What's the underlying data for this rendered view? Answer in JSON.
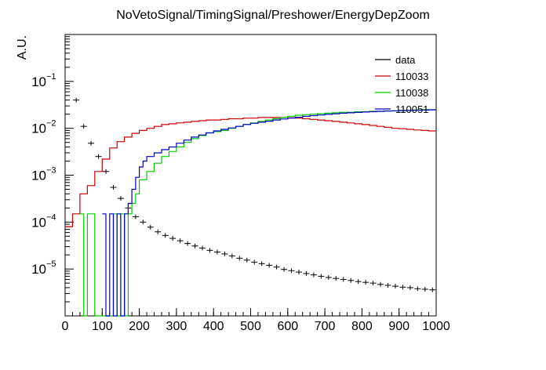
{
  "chart_data": {
    "type": "line",
    "title": "NoVetoSignal/TimingSignal/Preshower/EnergyDepZoom",
    "xlabel": "",
    "ylabel": "A.U.",
    "xlim": [
      0,
      1000
    ],
    "ylim": [
      1e-06,
      1
    ],
    "ylog": true,
    "grid": false,
    "legend_position": "top-right",
    "x_ticks": [
      "0",
      "100",
      "200",
      "300",
      "400",
      "500",
      "600",
      "700",
      "800",
      "900",
      "1000"
    ],
    "y_ticks": [
      {
        "value": 1e-05,
        "base": "10",
        "exp": "−5"
      },
      {
        "value": 0.0001,
        "base": "10",
        "exp": "−4"
      },
      {
        "value": 0.001,
        "base": "10",
        "exp": "−3"
      },
      {
        "value": 0.01,
        "base": "10",
        "exp": "−2"
      },
      {
        "value": 0.1,
        "base": "10",
        "exp": "−1"
      }
    ],
    "series": [
      {
        "name": "data",
        "style": "errorbar",
        "color": "#000000",
        "x": [
          30,
          50,
          70,
          90,
          110,
          130,
          150,
          170,
          190,
          210,
          230,
          250,
          270,
          290,
          310,
          330,
          350,
          370,
          390,
          410,
          430,
          450,
          470,
          490,
          510,
          530,
          550,
          570,
          590,
          610,
          630,
          650,
          670,
          690,
          710,
          730,
          750,
          770,
          790,
          810,
          830,
          850,
          870,
          890,
          910,
          930,
          950,
          970,
          990
        ],
        "y": [
          0.04,
          0.011,
          0.0048,
          0.0025,
          0.0012,
          0.00055,
          0.00032,
          0.0002,
          0.00013,
          0.0001,
          7.8e-05,
          6.2e-05,
          5.2e-05,
          4.5e-05,
          4e-05,
          3.5e-05,
          3.1e-05,
          2.8e-05,
          2.5e-05,
          2.3e-05,
          2.1e-05,
          1.9e-05,
          1.7e-05,
          1.55e-05,
          1.4e-05,
          1.3e-05,
          1.2e-05,
          1.1e-05,
          9.8e-06,
          9.2e-06,
          8.6e-06,
          8e-06,
          7.5e-06,
          7e-06,
          6.6e-06,
          6.3e-06,
          6e-06,
          5.7e-06,
          5.4e-06,
          5.2e-06,
          5e-06,
          4.7e-06,
          4.5e-06,
          4.3e-06,
          4.1e-06,
          4e-06,
          3.8e-06,
          3.7e-06,
          3.6e-06
        ]
      },
      {
        "name": "110033",
        "style": "step",
        "color": "#cc0000",
        "x": [
          0,
          20,
          40,
          60,
          80,
          100,
          120,
          140,
          160,
          180,
          200,
          220,
          240,
          260,
          280,
          300,
          320,
          340,
          360,
          380,
          400,
          420,
          440,
          460,
          480,
          500,
          520,
          540,
          560,
          580,
          600,
          620,
          640,
          660,
          680,
          700,
          720,
          740,
          760,
          780,
          800,
          820,
          840,
          860,
          880,
          900,
          920,
          940,
          960,
          980
        ],
        "y": [
          8e-05,
          0.00015,
          0.0004,
          0.0006,
          0.0012,
          0.0022,
          0.0038,
          0.0052,
          0.0065,
          0.0078,
          0.009,
          0.01,
          0.011,
          0.012,
          0.0125,
          0.013,
          0.0135,
          0.014,
          0.0145,
          0.015,
          0.015,
          0.0155,
          0.016,
          0.016,
          0.0165,
          0.0165,
          0.017,
          0.017,
          0.017,
          0.017,
          0.0168,
          0.0165,
          0.016,
          0.0155,
          0.015,
          0.0145,
          0.014,
          0.0135,
          0.013,
          0.0125,
          0.012,
          0.0115,
          0.011,
          0.0105,
          0.01,
          0.0098,
          0.0095,
          0.0092,
          0.009,
          0.0088
        ]
      },
      {
        "name": "110038",
        "style": "step",
        "color": "#00cc00",
        "x": [
          40,
          50,
          60,
          80,
          100,
          120,
          130,
          140,
          150,
          160,
          170,
          180,
          190,
          200,
          220,
          240,
          260,
          280,
          300,
          320,
          340,
          360,
          380,
          400,
          420,
          440,
          460,
          480,
          500,
          520,
          540,
          560,
          580,
          600,
          620,
          640,
          660,
          680,
          700,
          720,
          740,
          760,
          780,
          800,
          820,
          840,
          860,
          880,
          900,
          920,
          940,
          960,
          980
        ],
        "y": [
          0.00015,
          1e-06,
          0.00015,
          1e-06,
          1e-06,
          1e-06,
          0.00015,
          1e-06,
          0.00015,
          1e-06,
          0.00015,
          0.00025,
          0.0004,
          0.0008,
          0.0012,
          0.0018,
          0.0025,
          0.0032,
          0.004,
          0.005,
          0.006,
          0.007,
          0.008,
          0.0085,
          0.009,
          0.01,
          0.011,
          0.012,
          0.013,
          0.014,
          0.015,
          0.016,
          0.017,
          0.018,
          0.019,
          0.0195,
          0.02,
          0.0205,
          0.021,
          0.0215,
          0.022,
          0.022,
          0.0225,
          0.0225,
          0.023,
          0.023,
          0.0235,
          0.0235,
          0.024,
          0.024,
          0.0245,
          0.025,
          0.025
        ]
      },
      {
        "name": "110051",
        "style": "step",
        "color": "#0000cc",
        "x": [
          100,
          110,
          120,
          130,
          140,
          150,
          160,
          170,
          180,
          190,
          200,
          210,
          220,
          240,
          260,
          280,
          300,
          320,
          340,
          360,
          380,
          400,
          420,
          440,
          460,
          480,
          500,
          520,
          540,
          560,
          580,
          600,
          620,
          640,
          660,
          680,
          700,
          720,
          740,
          760,
          780,
          800,
          820,
          840,
          860,
          880,
          900,
          920,
          940,
          960,
          980
        ],
        "y": [
          0.00015,
          1e-06,
          0.00015,
          1e-06,
          0.00015,
          1e-06,
          0.00015,
          0.00025,
          0.0005,
          0.0009,
          0.0015,
          0.002,
          0.0025,
          0.003,
          0.0035,
          0.004,
          0.0048,
          0.0056,
          0.0065,
          0.0072,
          0.008,
          0.0088,
          0.0095,
          0.0102,
          0.011,
          0.012,
          0.0128,
          0.0135,
          0.0142,
          0.015,
          0.0158,
          0.0165,
          0.0172,
          0.018,
          0.0186,
          0.0192,
          0.0198,
          0.0204,
          0.021,
          0.0214,
          0.0218,
          0.0222,
          0.0226,
          0.023,
          0.0233,
          0.0236,
          0.0238,
          0.024,
          0.0242,
          0.0245,
          0.0248
        ]
      }
    ]
  }
}
